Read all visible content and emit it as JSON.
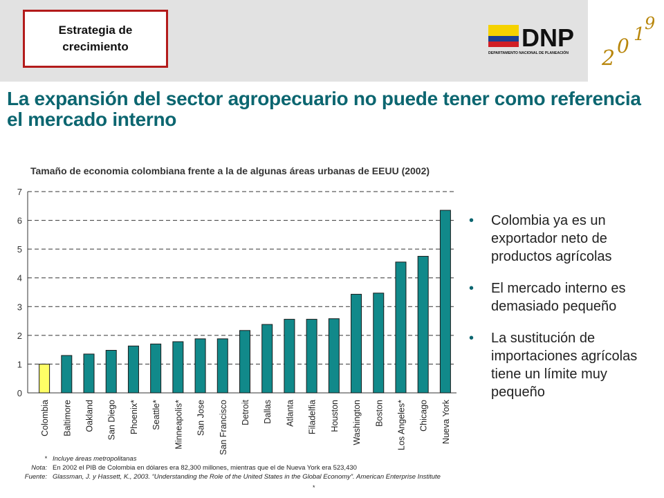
{
  "header": {
    "strategy_label": "Estrategia de crecimiento",
    "logo_text": "DNP",
    "logo_subtitle": "DEPARTAMENTO NACIONAL DE PLANEACIÓN",
    "vision_logo_text": "2019",
    "logo_colors": [
      "#f5d200",
      "#1a3f91",
      "#d11f26"
    ]
  },
  "headline": {
    "line1": "La expansión del sector agropecuario no puede tener como referencia",
    "line2": "el mercado interno"
  },
  "chart_data": {
    "type": "bar",
    "title": "Tamaño de economia colombiana frente a la de algunas áreas urbanas de EEUU (2002)",
    "categories": [
      "Colombia",
      "Baltimore",
      "Oakland",
      "San Diego",
      "Phoenix*",
      "Seattle*",
      "Minneapolis*",
      "San Jose",
      "San Francisco",
      "Detroit",
      "Dallas",
      "Atlanta",
      "Filadelfia",
      "Houston",
      "Washington",
      "Boston",
      "Los Angeles*",
      "Chicago",
      "Nueva York"
    ],
    "values": [
      1.0,
      1.3,
      1.35,
      1.48,
      1.63,
      1.7,
      1.78,
      1.88,
      1.88,
      2.17,
      2.38,
      2.56,
      2.56,
      2.58,
      3.43,
      3.47,
      4.55,
      4.75,
      6.35
    ],
    "highlight_index": 0,
    "highlight_color": "#ffff66",
    "bar_color": "#11898a",
    "ylim": [
      0,
      7
    ],
    "yticks": [
      "0",
      "1",
      "2",
      "3",
      "4",
      "5",
      "6",
      "7"
    ],
    "grid": "horizontal dashed"
  },
  "bullets": [
    "Colombia ya es un exportador neto de productos agrícolas",
    "El mercado interno es demasiado pequeño",
    "La sustitución de importaciones agrícolas tiene un límite muy pequeño"
  ],
  "notes": {
    "star_key": "*",
    "star_text": "Incluye áreas metropolitanas",
    "nota_key": "Nota:",
    "nota_text": "En 2002 el PIB de Colombia en dólares era 82,300 millones, mientras que el de Nueva York era 523,430",
    "fuente_key": "Fuente:",
    "fuente_text": "Glassman, J. y Hassett, K., 2003. “Understanding the Role of the United States in the Global Economy”. American Enterprise Institute",
    "bottom_mark": "*"
  }
}
